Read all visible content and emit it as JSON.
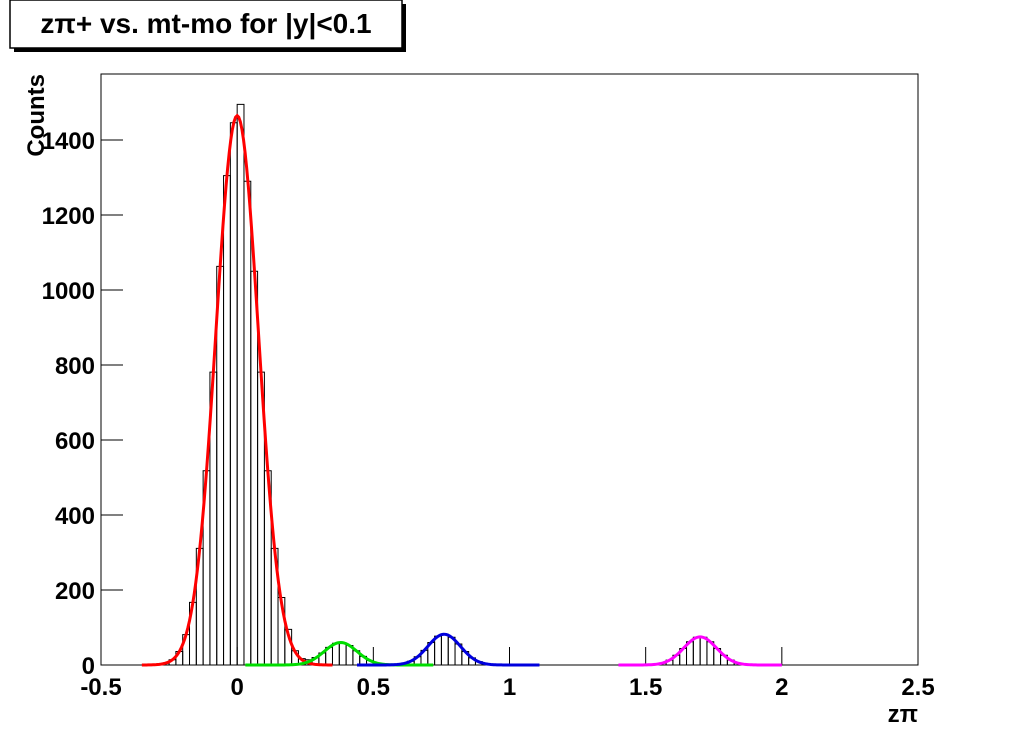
{
  "chart_data": {
    "type": "histogram",
    "title": "zπ+ vs. mt-mo for |y|<0.1",
    "x_label": "zπ",
    "y_label": "Counts",
    "bins": [
      -0.5,
      -0.475,
      -0.45,
      -0.425,
      -0.4,
      -0.375,
      -0.35,
      -0.325,
      -0.3,
      -0.275,
      -0.25,
      -0.225,
      -0.2,
      -0.175,
      -0.15,
      -0.125,
      -0.1,
      -0.075,
      -0.05,
      -0.025,
      0,
      0.025,
      0.05,
      0.075,
      0.1,
      0.125,
      0.15,
      0.175,
      0.2,
      0.225,
      0.25,
      0.275,
      0.3,
      0.325,
      0.35,
      0.375,
      0.4,
      0.425,
      0.45,
      0.475,
      0.5,
      0.525,
      0.55,
      0.575,
      0.6,
      0.625,
      0.65,
      0.675,
      0.7,
      0.725,
      0.75,
      0.775,
      0.8,
      0.825,
      0.85,
      0.875,
      0.9,
      0.925,
      0.95,
      0.975,
      1,
      1.025,
      1.05,
      1.075,
      1.1,
      1.125,
      1.15,
      1.175,
      1.2,
      1.225,
      1.25,
      1.275,
      1.3,
      1.325,
      1.35,
      1.375,
      1.4,
      1.425,
      1.45,
      1.475,
      1.5,
      1.525,
      1.55,
      1.575,
      1.6,
      1.625,
      1.65,
      1.675,
      1.7,
      1.725,
      1.75,
      1.775,
      1.8,
      1.825,
      1.85,
      1.875,
      1.9,
      1.925,
      1.95,
      1.975,
      2,
      2.025,
      2.05,
      2.075,
      2.1,
      2.125,
      2.15,
      2.175,
      2.2,
      2.225,
      2.25,
      2.275,
      2.3,
      2.325,
      2.35,
      2.375,
      2.4,
      2.425,
      2.45,
      2.475,
      2.5
    ],
    "counts": [
      0,
      0,
      0,
      0,
      0,
      0,
      0,
      0,
      2,
      5,
      14,
      36,
      81,
      167,
      311,
      518,
      781,
      1063,
      1305,
      1446,
      1495,
      1290,
      1050,
      781,
      518,
      311,
      180,
      95,
      38,
      17,
      14,
      20,
      32,
      47,
      58,
      59,
      52,
      38,
      23,
      12,
      5,
      1,
      0,
      1,
      4,
      10,
      22,
      39,
      60,
      77,
      82,
      74,
      56,
      36,
      19,
      9,
      3,
      1,
      0,
      0,
      0,
      0,
      0,
      0,
      0,
      0,
      0,
      0,
      0,
      0,
      0,
      0,
      0,
      0,
      0,
      0,
      0,
      0,
      0,
      0,
      1,
      2,
      5,
      13,
      26,
      44,
      62,
      74,
      74,
      62,
      44,
      26,
      13,
      5,
      2,
      1,
      0,
      0,
      0,
      0,
      0,
      0,
      0,
      0,
      0,
      0,
      0,
      0,
      0,
      0,
      0,
      0,
      0,
      0,
      0,
      0,
      0,
      0,
      0,
      0
    ],
    "color": "#000000",
    "fits": [
      {
        "color": "#ff0000",
        "amplitude": 1465,
        "mean": 0,
        "sigma": 0.078,
        "range": [
          -0.35,
          0.35
        ]
      },
      {
        "color": "#00dd00",
        "amplitude": 60,
        "mean": 0.38,
        "sigma": 0.06,
        "range": [
          0.03,
          0.72
        ]
      },
      {
        "color": "#0000dd",
        "amplitude": 82,
        "mean": 0.76,
        "sigma": 0.06,
        "range": [
          0.44,
          1.11
        ]
      },
      {
        "color": "#ff00ff",
        "amplitude": 75,
        "mean": 1.7,
        "sigma": 0.06,
        "range": [
          1.4,
          2.0
        ]
      }
    ],
    "xlim": [
      -0.5,
      2.5
    ],
    "ylim": [
      0,
      1576
    ],
    "xticks": [
      -0.5,
      0,
      0.5,
      1,
      1.5,
      2,
      2.5
    ],
    "yticks": [
      0,
      200,
      400,
      600,
      800,
      1000,
      1200,
      1400
    ],
    "grid": false
  }
}
